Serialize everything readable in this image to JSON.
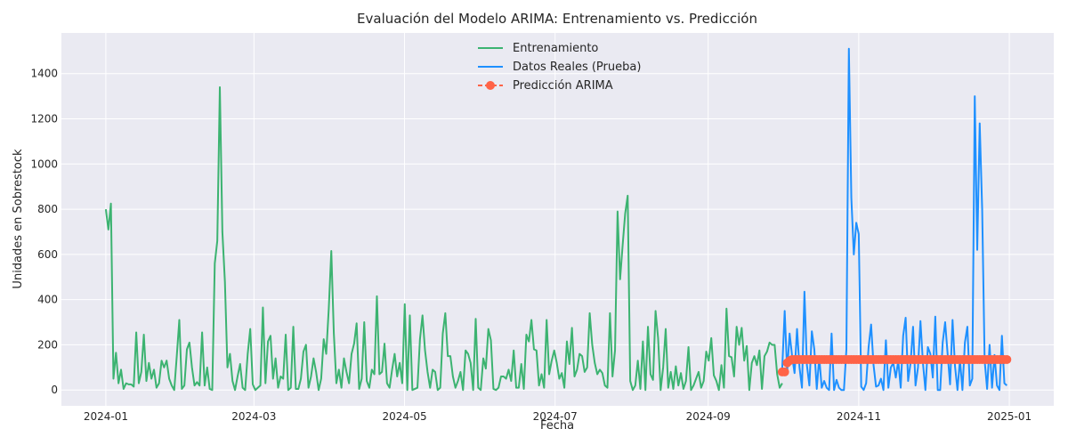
{
  "chart_data": {
    "type": "line",
    "title": "Evaluación del Modelo ARIMA: Entrenamiento vs. Predicción",
    "xlabel": "Fecha",
    "ylabel": "Unidades en Sobrestock",
    "xlim": [
      "2023-12-14",
      "2025-01-19"
    ],
    "ylim": [
      -70,
      1580
    ],
    "x_ticks": [
      "2024-01",
      "2024-03",
      "2024-05",
      "2024-07",
      "2024-09",
      "2024-11",
      "2025-01"
    ],
    "y_ticks": [
      0,
      200,
      400,
      600,
      800,
      1000,
      1200,
      1400
    ],
    "grid": true,
    "legend_position": "top-center",
    "series": [
      {
        "name": "Entrenamiento",
        "color": "#3cb371",
        "style": "line",
        "start": "2024-01-01",
        "end": "2024-10-01",
        "values": [
          800,
          710,
          825,
          50,
          165,
          30,
          90,
          5,
          30,
          25,
          25,
          15,
          255,
          30,
          80,
          245,
          40,
          120,
          50,
          90,
          10,
          30,
          130,
          100,
          130,
          50,
          20,
          0,
          150,
          310,
          5,
          20,
          180,
          210,
          100,
          20,
          35,
          20,
          255,
          20,
          100,
          5,
          0,
          560,
          660,
          1340,
          700,
          480,
          100,
          160,
          40,
          0,
          60,
          115,
          10,
          0,
          160,
          270,
          25,
          0,
          10,
          20,
          365,
          30,
          215,
          240,
          50,
          140,
          10,
          60,
          50,
          245,
          0,
          10,
          280,
          5,
          5,
          50,
          170,
          200,
          10,
          60,
          140,
          80,
          0,
          50,
          225,
          160,
          360,
          615,
          250,
          30,
          90,
          10,
          140,
          80,
          30,
          160,
          205,
          295,
          5,
          50,
          300,
          40,
          10,
          90,
          70,
          415,
          70,
          80,
          205,
          30,
          10,
          90,
          160,
          60,
          120,
          30,
          380,
          0,
          330,
          0,
          5,
          10,
          225,
          330,
          175,
          80,
          10,
          90,
          80,
          0,
          10,
          250,
          340,
          150,
          150,
          60,
          10,
          40,
          80,
          0,
          175,
          160,
          120,
          0,
          315,
          10,
          0,
          140,
          95,
          270,
          220,
          5,
          0,
          10,
          60,
          60,
          50,
          90,
          40,
          175,
          10,
          10,
          115,
          5,
          245,
          215,
          310,
          180,
          175,
          20,
          70,
          10,
          310,
          70,
          130,
          175,
          120,
          50,
          75,
          10,
          215,
          115,
          275,
          60,
          90,
          160,
          150,
          80,
          100,
          340,
          200,
          120,
          70,
          90,
          75,
          20,
          10,
          340,
          60,
          175,
          790,
          490,
          640,
          780,
          860,
          40,
          0,
          20,
          130,
          5,
          215,
          0,
          280,
          70,
          45,
          350,
          230,
          0,
          100,
          270,
          10,
          80,
          5,
          105,
          20,
          75,
          5,
          40,
          190,
          0,
          20,
          50,
          80,
          10,
          40,
          170,
          130,
          230,
          65,
          40,
          0,
          110,
          10,
          360,
          150,
          145,
          60,
          280,
          200,
          275,
          130,
          195,
          0,
          120,
          150,
          110,
          175,
          5,
          150,
          170,
          210,
          200,
          200,
          70,
          10,
          30
        ]
      },
      {
        "name": "Datos Reales (Prueba)",
        "color": "#1e90ff",
        "style": "line",
        "start": "2024-10-01",
        "end": "2024-12-31",
        "values": [
          95,
          350,
          80,
          250,
          150,
          75,
          270,
          100,
          10,
          435,
          110,
          20,
          260,
          180,
          5,
          145,
          10,
          40,
          10,
          0,
          250,
          0,
          45,
          10,
          0,
          0,
          180,
          1510,
          850,
          600,
          740,
          690,
          15,
          0,
          30,
          190,
          290,
          110,
          15,
          20,
          50,
          0,
          220,
          10,
          100,
          120,
          55,
          130,
          10,
          240,
          320,
          40,
          120,
          280,
          20,
          100,
          305,
          120,
          0,
          190,
          160,
          55,
          325,
          0,
          0,
          210,
          300,
          160,
          25,
          310,
          105,
          0,
          135,
          0,
          210,
          280,
          20,
          50,
          1300,
          620,
          1180,
          800,
          130,
          5,
          200,
          10,
          155,
          20,
          0,
          240,
          30,
          20
        ]
      },
      {
        "name": "Predicción ARIMA",
        "color": "#ff6347",
        "style": "dashed-markers",
        "start": "2024-10-01",
        "end": "2024-12-31",
        "values": [
          80,
          80,
          120,
          130,
          135,
          135,
          135,
          135,
          135,
          135,
          135,
          135,
          135,
          135,
          135,
          135,
          135,
          135,
          135,
          135,
          135,
          135,
          135,
          135,
          135,
          135,
          135,
          135,
          135,
          135,
          135,
          135,
          135,
          135,
          135,
          135,
          135,
          135,
          135,
          135,
          135,
          135,
          135,
          135,
          135,
          135,
          135,
          135,
          135,
          135,
          135,
          135,
          135,
          135,
          135,
          135,
          135,
          135,
          135,
          135,
          135,
          135,
          135,
          135,
          135,
          135,
          135,
          135,
          135,
          135,
          135,
          135,
          135,
          135,
          135,
          135,
          135,
          135,
          135,
          135,
          135,
          135,
          135,
          135,
          135,
          135,
          135,
          135,
          135,
          135,
          135,
          135
        ]
      }
    ]
  }
}
